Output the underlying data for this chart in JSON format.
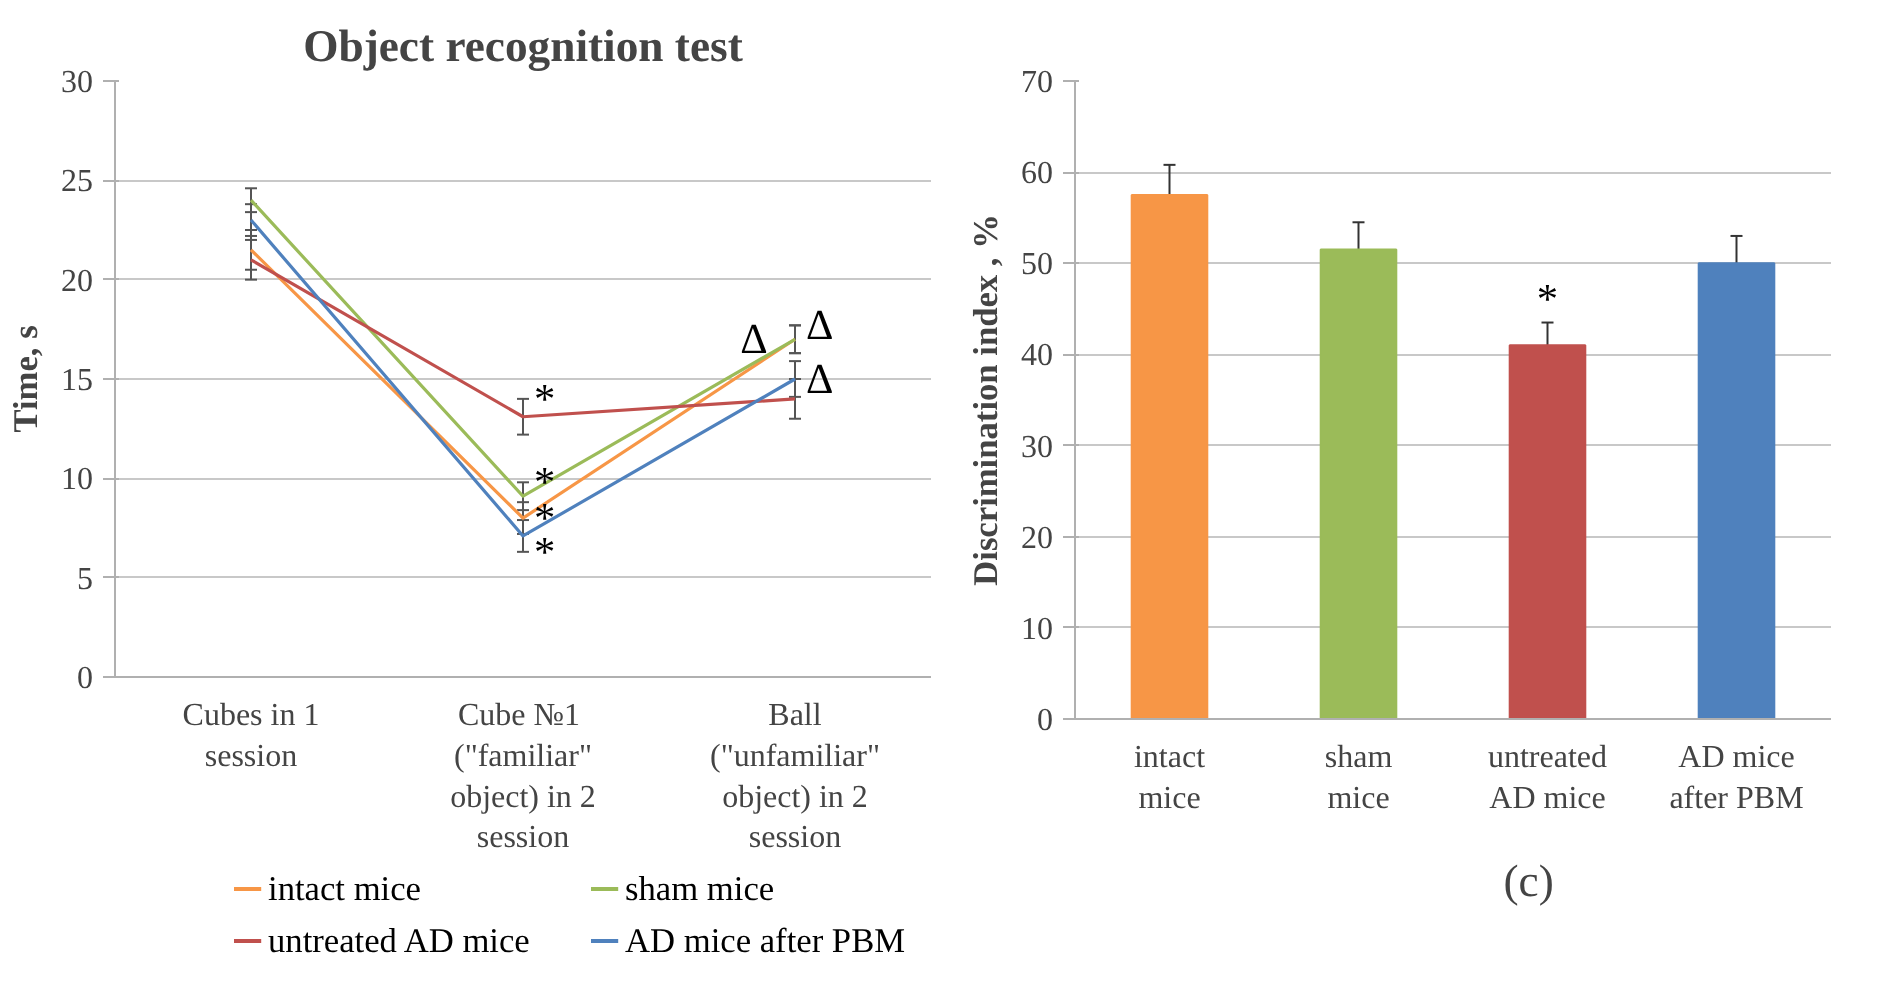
{
  "chart_data": [
    {
      "type": "line",
      "title": "Object recognition test",
      "ylabel": "Time, s",
      "categories": [
        "Cubes in 1\nsession",
        "Cube  №1\n(\"familiar\"\nobject) in 2\nsession",
        "Ball\n(\"unfamiliar\"\nobject) in 2\nsession"
      ],
      "series": [
        {
          "name": "intact mice",
          "color": "#f79646",
          "values": [
            21.5,
            8.0,
            17.0
          ],
          "errors": [
            1.0,
            0.8,
            0.7
          ]
        },
        {
          "name": "sham mice",
          "color": "#9bbb59",
          "values": [
            24.0,
            9.1,
            17.0
          ],
          "errors": [
            0.6,
            0.7,
            0.7
          ]
        },
        {
          "name": "untreated AD mice",
          "color": "#c0504d",
          "values": [
            21.0,
            13.1,
            14.0
          ],
          "errors": [
            1.0,
            0.9,
            1.0
          ]
        },
        {
          "name": "AD mice after PBM",
          "color": "#4f81bd",
          "values": [
            23.0,
            7.1,
            15.0
          ],
          "errors": [
            0.8,
            0.8,
            0.9
          ]
        }
      ],
      "annotations": [
        {
          "text": "*",
          "x": "Cube  №1\n(\"familiar\"\nobject) in 2\nsession",
          "y": 14.0
        },
        {
          "text": "*",
          "x": "Cube  №1\n(\"familiar\"\nobject) in 2\nsession",
          "y": 9.8
        },
        {
          "text": "*",
          "x": "Cube  №1\n(\"familiar\"\nobject) in 2\nsession",
          "y": 8.0
        },
        {
          "text": "*",
          "x": "Cube  №1\n(\"familiar\"\nobject) in 2\nsession",
          "y": 6.3
        },
        {
          "text": "Δ",
          "x": "Ball\n(\"unfamiliar\"\nobject) in 2\nsession",
          "y": 17.0
        },
        {
          "text": "Δ",
          "x": "Ball\n(\"unfamiliar\"\nobject) in 2\nsession",
          "y": 17.7
        },
        {
          "text": "Δ",
          "x": "Ball\n(\"unfamiliar\"\nobject) in 2\nsession",
          "y": 15.0
        }
      ],
      "ylim": [
        0,
        30
      ],
      "yticks": [
        0,
        5,
        10,
        15,
        20,
        25,
        30
      ],
      "grid": "y",
      "legend": "bottom",
      "marker": "none",
      "line_style": "solid"
    },
    {
      "type": "bar",
      "ylabel": "Discrimination index , %",
      "categories": [
        "intact\nmice",
        "sham\nmice",
        "untreated\nAD mice",
        "AD mice\nafter PBM"
      ],
      "values": [
        57.5,
        51.5,
        41.0,
        50.0
      ],
      "colors": [
        "#f79646",
        "#9bbb59",
        "#c0504d",
        "#4f81bd"
      ],
      "errors": [
        3.3,
        3.0,
        2.5,
        3.0
      ],
      "annotations": [
        {
          "text": "*",
          "x": "untreated\nAD mice",
          "y": 43.5
        },
        "(c)"
      ],
      "ylim": [
        0,
        70
      ],
      "yticks": [
        0,
        10,
        20,
        30,
        40,
        50,
        60,
        70
      ],
      "grid": "y"
    }
  ]
}
